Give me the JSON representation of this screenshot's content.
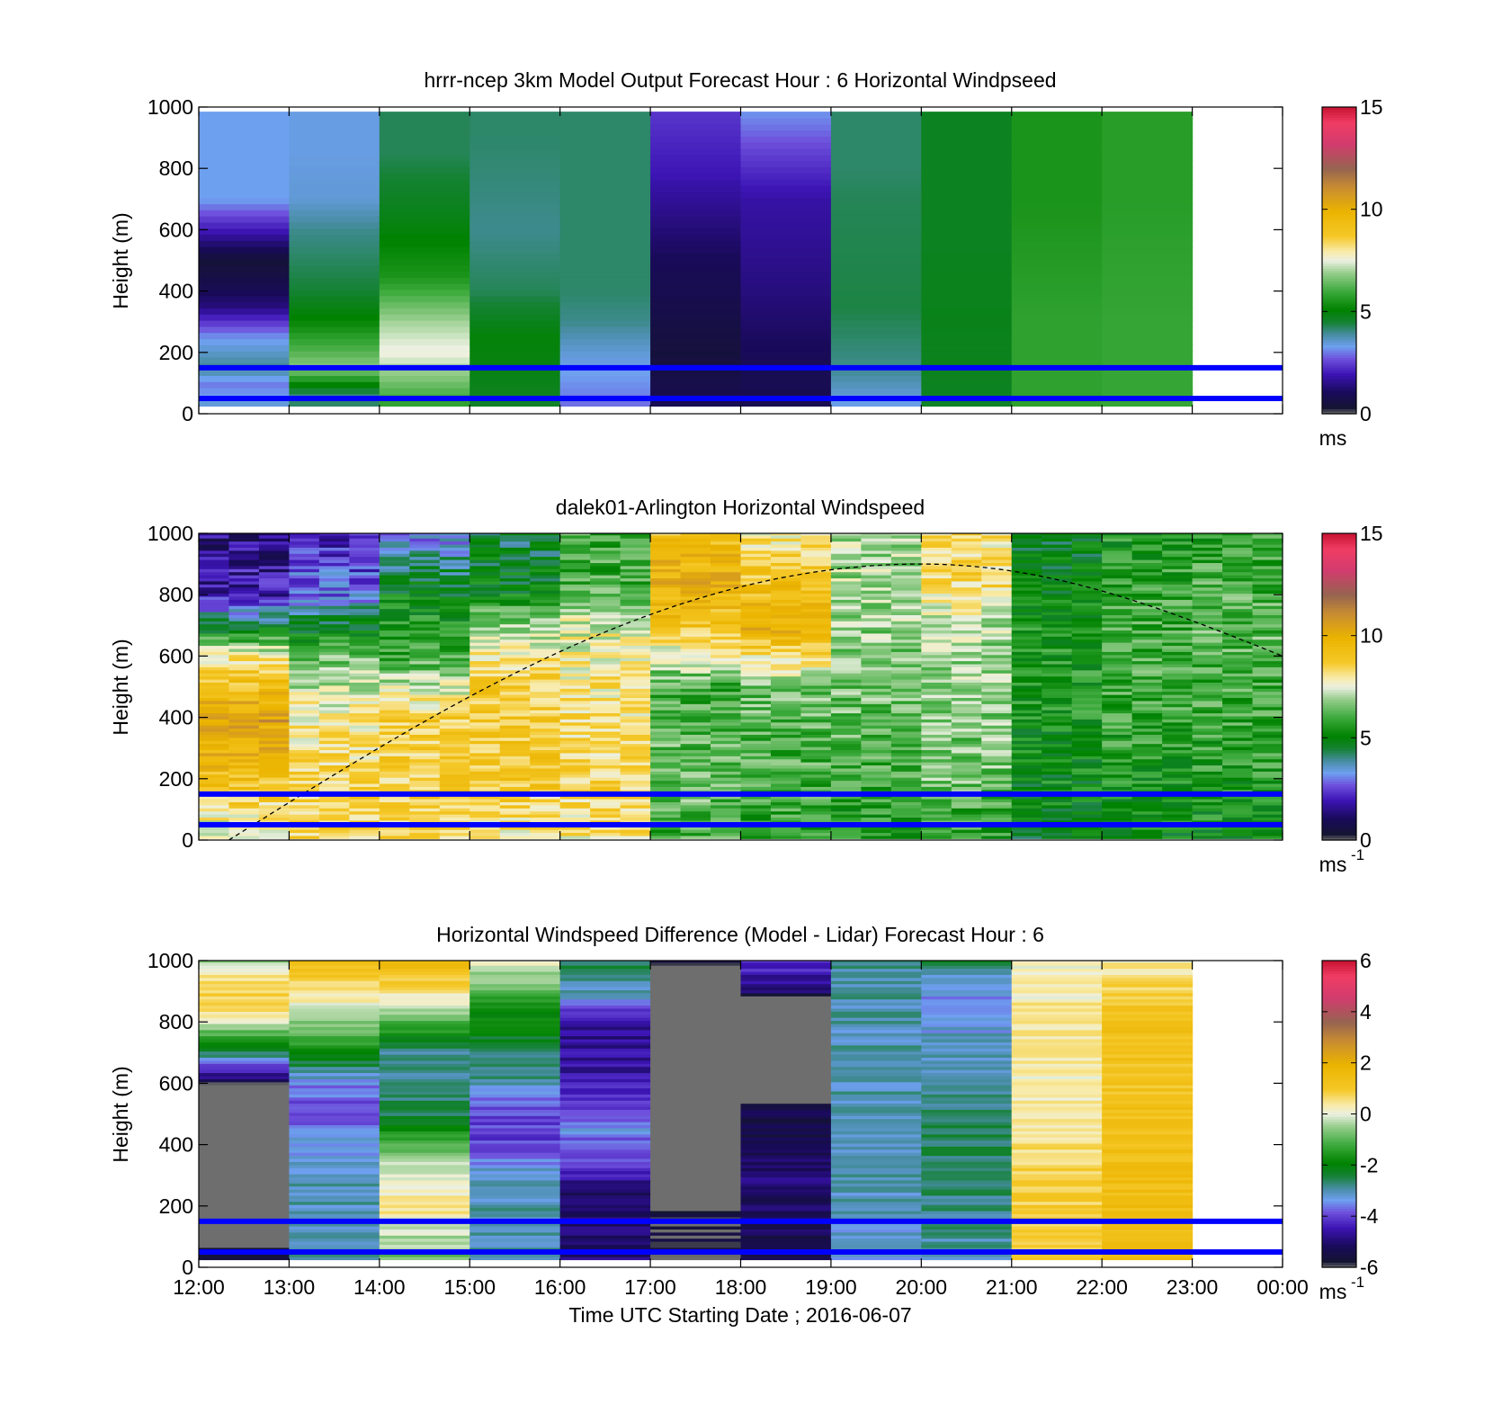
{
  "colors": {
    "reference_lines": "#0000ff",
    "frame": "#000000"
  },
  "chart_data": [
    {
      "type": "heatmap",
      "title": "hrrr-ncep 3km Model Output   Forecast Hour : 6 Horizontal Windpseed",
      "ylabel": "Height (m)",
      "xlabel": "",
      "ylim": [
        0,
        1000
      ],
      "yticks": [
        "0",
        "200",
        "400",
        "600",
        "800",
        "1000"
      ],
      "xlim": [
        "12:00",
        "00:00"
      ],
      "colorbar": {
        "min": 0,
        "max": 15,
        "ticks": [
          "0",
          "5",
          "10",
          "15"
        ],
        "unit": "ms"
      },
      "reference_lines_m": [
        150,
        50
      ],
      "columns": [
        {
          "hour": 12,
          "levels": [
            [
              0,
              2.5
            ],
            [
              30,
              3.5
            ],
            [
              100,
              3
            ],
            [
              150,
              4
            ],
            [
              250,
              3.2
            ],
            [
              310,
              2.2
            ],
            [
              350,
              1.4
            ],
            [
              420,
              0.8
            ],
            [
              500,
              0.4
            ],
            [
              600,
              2
            ],
            [
              700,
              3.3
            ],
            [
              1000,
              3.3
            ]
          ]
        },
        {
          "hour": 13,
          "levels": [
            [
              0,
              4.5
            ],
            [
              60,
              4
            ],
            [
              150,
              6.8
            ],
            [
              300,
              5.2
            ],
            [
              400,
              4.5
            ],
            [
              600,
              4
            ],
            [
              700,
              3.5
            ],
            [
              850,
              3.4
            ],
            [
              1000,
              3.4
            ]
          ]
        },
        {
          "hour": 14,
          "levels": [
            [
              0,
              5.5
            ],
            [
              100,
              6.5
            ],
            [
              200,
              7.6
            ],
            [
              300,
              7
            ],
            [
              350,
              6.5
            ],
            [
              450,
              5.5
            ],
            [
              650,
              4.8
            ],
            [
              850,
              4.3
            ],
            [
              1000,
              4.3
            ]
          ]
        },
        {
          "hour": 15,
          "levels": [
            [
              0,
              4.5
            ],
            [
              100,
              4.8
            ],
            [
              250,
              5
            ],
            [
              400,
              4.3
            ],
            [
              600,
              4
            ],
            [
              900,
              4.2
            ],
            [
              1000,
              4.2
            ]
          ]
        },
        {
          "hour": 16,
          "levels": [
            [
              0,
              2.8
            ],
            [
              100,
              3.2
            ],
            [
              200,
              3.5
            ],
            [
              300,
              4
            ],
            [
              400,
              4.2
            ],
            [
              700,
              4.2
            ],
            [
              1000,
              4.2
            ]
          ]
        },
        {
          "hour": 17,
          "levels": [
            [
              0,
              1
            ],
            [
              200,
              0.5
            ],
            [
              500,
              1
            ],
            [
              800,
              2
            ],
            [
              1000,
              2.4
            ]
          ]
        },
        {
          "hour": 18,
          "levels": [
            [
              0,
              0.8
            ],
            [
              200,
              1
            ],
            [
              400,
              1.4
            ],
            [
              700,
              1.8
            ],
            [
              850,
              2.5
            ],
            [
              1000,
              3.3
            ]
          ]
        },
        {
          "hour": 19,
          "levels": [
            [
              0,
              3.2
            ],
            [
              60,
              3.5
            ],
            [
              150,
              4
            ],
            [
              350,
              4.4
            ],
            [
              700,
              4.3
            ],
            [
              800,
              4.2
            ],
            [
              1000,
              4.2
            ]
          ]
        },
        {
          "hour": 20,
          "levels": [
            [
              0,
              4.5
            ],
            [
              60,
              4.7
            ],
            [
              300,
              4.8
            ],
            [
              600,
              4.7
            ],
            [
              1000,
              4.7
            ]
          ]
        },
        {
          "hour": 21,
          "levels": [
            [
              0,
              5.8
            ],
            [
              300,
              5.8
            ],
            [
              700,
              5.5
            ],
            [
              1000,
              5.5
            ]
          ]
        },
        {
          "hour": 22,
          "levels": [
            [
              0,
              5.9
            ],
            [
              300,
              5.9
            ],
            [
              700,
              5.7
            ],
            [
              1000,
              5.7
            ]
          ]
        }
      ]
    },
    {
      "type": "heatmap",
      "title": "dalek01-Arlington  Horizontal Windspeed",
      "ylabel": "Height (m)",
      "xlabel": "",
      "ylim": [
        0,
        1000
      ],
      "yticks": [
        "0",
        "200",
        "400",
        "600",
        "800",
        "1000"
      ],
      "xlim": [
        "12:00",
        "00:00"
      ],
      "colorbar": {
        "min": 0,
        "max": 15,
        "ticks": [
          "0",
          "5",
          "10",
          "15"
        ],
        "unit": "ms",
        "unit_exp": "-1"
      },
      "reference_lines_m": [
        150,
        50
      ],
      "boundary_layer_curve": {
        "start": [
          "12:20",
          0
        ],
        "peak": [
          "20:00",
          900
        ],
        "end": [
          "00:00",
          600
        ]
      },
      "columns": [
        {
          "hour": 12,
          "levels": [
            [
              0,
              7
            ],
            [
              150,
              8.8
            ],
            [
              400,
              10.5
            ],
            [
              600,
              8
            ],
            [
              700,
              4.5
            ],
            [
              800,
              2
            ],
            [
              1000,
              1.5
            ]
          ]
        },
        {
          "hour": 13,
          "levels": [
            [
              0,
              8.5
            ],
            [
              200,
              8.5
            ],
            [
              400,
              8
            ],
            [
              600,
              6.5
            ],
            [
              800,
              3
            ],
            [
              1000,
              2
            ]
          ]
        },
        {
          "hour": 14,
          "levels": [
            [
              0,
              8.5
            ],
            [
              200,
              8.6
            ],
            [
              400,
              8.7
            ],
            [
              600,
              6
            ],
            [
              800,
              5
            ],
            [
              1000,
              3
            ]
          ]
        },
        {
          "hour": 15,
          "levels": [
            [
              0,
              8
            ],
            [
              200,
              8.8
            ],
            [
              500,
              8.7
            ],
            [
              700,
              7
            ],
            [
              800,
              5
            ],
            [
              1000,
              4.5
            ]
          ]
        },
        {
          "hour": 16,
          "levels": [
            [
              0,
              8
            ],
            [
              200,
              8.5
            ],
            [
              500,
              8
            ],
            [
              700,
              7.5
            ],
            [
              850,
              6
            ],
            [
              1000,
              6
            ]
          ]
        },
        {
          "hour": 17,
          "levels": [
            [
              0,
              6
            ],
            [
              200,
              6.5
            ],
            [
              500,
              6
            ],
            [
              700,
              9
            ],
            [
              850,
              10
            ],
            [
              1000,
              9
            ]
          ]
        },
        {
          "hour": 18,
          "levels": [
            [
              0,
              5.8
            ],
            [
              200,
              6
            ],
            [
              500,
              6.5
            ],
            [
              700,
              10
            ],
            [
              850,
              9
            ],
            [
              1000,
              8
            ]
          ]
        },
        {
          "hour": 19,
          "levels": [
            [
              0,
              5.5
            ],
            [
              200,
              6
            ],
            [
              500,
              6.5
            ],
            [
              700,
              6.8
            ],
            [
              850,
              7
            ],
            [
              1000,
              7
            ]
          ]
        },
        {
          "hour": 20,
          "levels": [
            [
              0,
              5.5
            ],
            [
              200,
              6.5
            ],
            [
              500,
              6.8
            ],
            [
              700,
              7
            ],
            [
              850,
              8.5
            ],
            [
              1000,
              8
            ]
          ]
        },
        {
          "hour": 21,
          "levels": [
            [
              0,
              4.8
            ],
            [
              200,
              5.2
            ],
            [
              500,
              5.5
            ],
            [
              700,
              5.5
            ],
            [
              850,
              5
            ],
            [
              1000,
              4.8
            ]
          ]
        },
        {
          "hour": 22,
          "levels": [
            [
              0,
              5
            ],
            [
              200,
              5.5
            ],
            [
              500,
              6
            ],
            [
              700,
              6
            ],
            [
              850,
              5.8
            ],
            [
              1000,
              5.5
            ]
          ]
        },
        {
          "hour": 23,
          "levels": [
            [
              0,
              5.2
            ],
            [
              200,
              5.6
            ],
            [
              500,
              6
            ],
            [
              700,
              6.3
            ],
            [
              850,
              6
            ],
            [
              1000,
              5.8
            ]
          ]
        }
      ]
    },
    {
      "type": "heatmap",
      "title": "Horizontal Windspeed Difference (Model - Lidar) Forecast Hour : 6",
      "ylabel": "Height (m)",
      "xlabel": "Time UTC  Starting Date ; 2016-06-07",
      "ylim": [
        0,
        1000
      ],
      "yticks": [
        "0",
        "200",
        "400",
        "600",
        "800",
        "1000"
      ],
      "xticks": [
        "12:00",
        "13:00",
        "14:00",
        "15:00",
        "16:00",
        "17:00",
        "18:00",
        "19:00",
        "20:00",
        "21:00",
        "22:00",
        "23:00",
        "00:00"
      ],
      "colorbar": {
        "min": -6,
        "max": 6,
        "ticks": [
          "-6",
          "-4",
          "-2",
          "0",
          "2",
          "4",
          "6"
        ],
        "unit": "ms",
        "unit_exp": "-1"
      },
      "reference_lines_m": [
        150,
        50
      ],
      "columns": [
        {
          "hour": 12,
          "levels": [
            [
              0,
              -5.5
            ],
            [
              150,
              -6.5
            ],
            [
              590,
              -6.5
            ],
            [
              620,
              -5
            ],
            [
              700,
              -2.5
            ],
            [
              850,
              1
            ],
            [
              950,
              0.5
            ],
            [
              1000,
              -0.5
            ]
          ]
        },
        {
          "hour": 13,
          "levels": [
            [
              0,
              -3
            ],
            [
              300,
              -3
            ],
            [
              450,
              -3.5
            ],
            [
              500,
              -4
            ],
            [
              600,
              -3.5
            ],
            [
              700,
              -2
            ],
            [
              800,
              -0.5
            ],
            [
              900,
              0.5
            ],
            [
              1000,
              1.5
            ]
          ]
        },
        {
          "hour": 14,
          "levels": [
            [
              0,
              -1
            ],
            [
              200,
              0.5
            ],
            [
              300,
              0
            ],
            [
              400,
              -1
            ],
            [
              500,
              -2.5
            ],
            [
              700,
              -3
            ],
            [
              800,
              -1
            ],
            [
              900,
              0.5
            ],
            [
              1000,
              1.5
            ]
          ]
        },
        {
          "hour": 15,
          "levels": [
            [
              0,
              -3
            ],
            [
              300,
              -3
            ],
            [
              400,
              -4
            ],
            [
              500,
              -4
            ],
            [
              600,
              -3
            ],
            [
              800,
              -2
            ],
            [
              900,
              -1
            ],
            [
              1000,
              0
            ]
          ]
        },
        {
          "hour": 16,
          "levels": [
            [
              0,
              -5
            ],
            [
              250,
              -5
            ],
            [
              350,
              -4
            ],
            [
              450,
              -3.5
            ],
            [
              600,
              -4.5
            ],
            [
              800,
              -4.8
            ],
            [
              900,
              -3
            ],
            [
              1000,
              -2.5
            ]
          ]
        },
        {
          "hour": 17,
          "levels": [
            [
              0,
              -5.8
            ],
            [
              170,
              -5.8
            ],
            [
              220,
              -6.5
            ],
            [
              520,
              -6.5
            ],
            [
              980,
              -6.5
            ],
            [
              1000,
              -5.5
            ]
          ]
        },
        {
          "hour": 18,
          "levels": [
            [
              0,
              -5.5
            ],
            [
              300,
              -5
            ],
            [
              530,
              -5.5
            ],
            [
              540,
              -6.5
            ],
            [
              870,
              -6.5
            ],
            [
              900,
              -5
            ],
            [
              1000,
              -4
            ]
          ]
        },
        {
          "hour": 19,
          "levels": [
            [
              0,
              -3.2
            ],
            [
              400,
              -3
            ],
            [
              700,
              -3
            ],
            [
              800,
              -3
            ],
            [
              1000,
              -2.8
            ]
          ]
        },
        {
          "hour": 20,
          "levels": [
            [
              0,
              -3
            ],
            [
              400,
              -2.5
            ],
            [
              700,
              -3
            ],
            [
              850,
              -3.5
            ],
            [
              950,
              -3
            ],
            [
              1000,
              -2.5
            ]
          ]
        },
        {
          "hour": 21,
          "levels": [
            [
              0,
              1
            ],
            [
              300,
              0.8
            ],
            [
              600,
              0.2
            ],
            [
              800,
              0.5
            ],
            [
              1000,
              0
            ]
          ]
        },
        {
          "hour": 22,
          "levels": [
            [
              0,
              1.5
            ],
            [
              300,
              1.4
            ],
            [
              600,
              1.2
            ],
            [
              800,
              1.3
            ],
            [
              1000,
              0.3
            ]
          ]
        }
      ]
    }
  ]
}
